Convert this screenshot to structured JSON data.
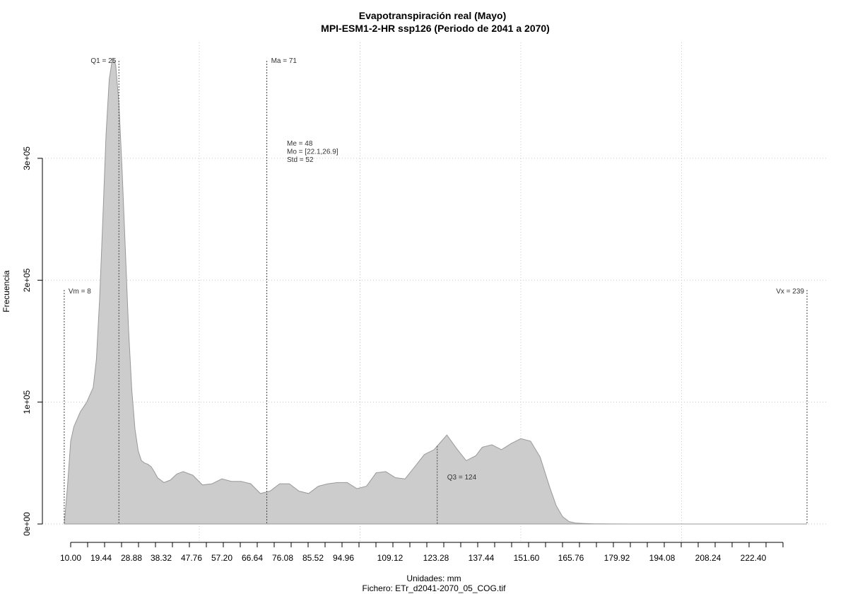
{
  "chart_data": {
    "type": "area",
    "title": "Evapotranspiración real (Mayo)",
    "subtitle": "MPI-ESM1-2-HR ssp126 (Periodo de 2041 a 2070)",
    "xlabel": "Unidades: mm",
    "ylabel": "Frecuencia",
    "caption": "Fichero: ETr_d2041-2070_05_COG.tif",
    "xlim": [
      10,
      239
    ],
    "ylim": [
      0,
      380000
    ],
    "grid": true,
    "fill_color": "#cccccc",
    "line_color": "#999999",
    "x_ticks": [
      "10.00",
      "19.44",
      "28.88",
      "38.32",
      "47.76",
      "57.20",
      "66.64",
      "76.08",
      "85.52",
      "94.96",
      "109.12",
      "123.28",
      "137.44",
      "151.60",
      "165.76",
      "179.92",
      "194.08",
      "208.24",
      "222.40"
    ],
    "y_ticks": [
      {
        "value": 0,
        "label": "0e+00"
      },
      {
        "value": 100000,
        "label": "1e+05"
      },
      {
        "value": 200000,
        "label": "2e+05"
      },
      {
        "value": 300000,
        "label": "3e+05"
      }
    ],
    "density": {
      "x": [
        8,
        9,
        10,
        11,
        13,
        15,
        17,
        18,
        19,
        20,
        21,
        22,
        23,
        24,
        25,
        26,
        27,
        28,
        29,
        30,
        31,
        32,
        33,
        34,
        35,
        36,
        37,
        39,
        41,
        43,
        45,
        48,
        51,
        54,
        57,
        60,
        63,
        66,
        69,
        72,
        75,
        78,
        81,
        84,
        87,
        90,
        93,
        96,
        99,
        102,
        105,
        108,
        111,
        114,
        117,
        120,
        123,
        125,
        127,
        130,
        133,
        136,
        138,
        141,
        144,
        147,
        150,
        153,
        156,
        159,
        161,
        163,
        165,
        167,
        169,
        171,
        173,
        175,
        178,
        185,
        200,
        215,
        230,
        239
      ],
      "y": [
        0,
        30000,
        68000,
        80000,
        92000,
        100000,
        112000,
        135000,
        185000,
        250000,
        320000,
        365000,
        382000,
        377000,
        345000,
        290000,
        225000,
        160000,
        110000,
        78000,
        60000,
        52000,
        50000,
        49000,
        47000,
        43000,
        38000,
        34000,
        36000,
        41000,
        43000,
        40000,
        32000,
        33000,
        37000,
        35000,
        35000,
        33000,
        25000,
        27000,
        33000,
        33000,
        27000,
        25000,
        31000,
        33000,
        34000,
        34000,
        29000,
        31000,
        42000,
        43000,
        38000,
        37000,
        47000,
        57000,
        61000,
        67000,
        73000,
        62000,
        52000,
        56000,
        63000,
        65000,
        61000,
        66000,
        70000,
        68000,
        55000,
        30000,
        15000,
        6000,
        2000,
        800,
        500,
        300,
        200,
        100,
        50,
        0,
        0,
        0,
        0,
        0
      ]
    },
    "markers": [
      {
        "label": "Vm = 8",
        "value": 8
      },
      {
        "label": "Q1 = 25",
        "value": 25
      },
      {
        "label": "Ma = 71",
        "value": 71
      },
      {
        "label": "Q3 = 124",
        "value": 124
      },
      {
        "label": "Vx = 239",
        "value": 239
      }
    ],
    "stats": [
      "Me = 48",
      "Mo = [22.1,26.9]",
      "Std = 52"
    ]
  }
}
